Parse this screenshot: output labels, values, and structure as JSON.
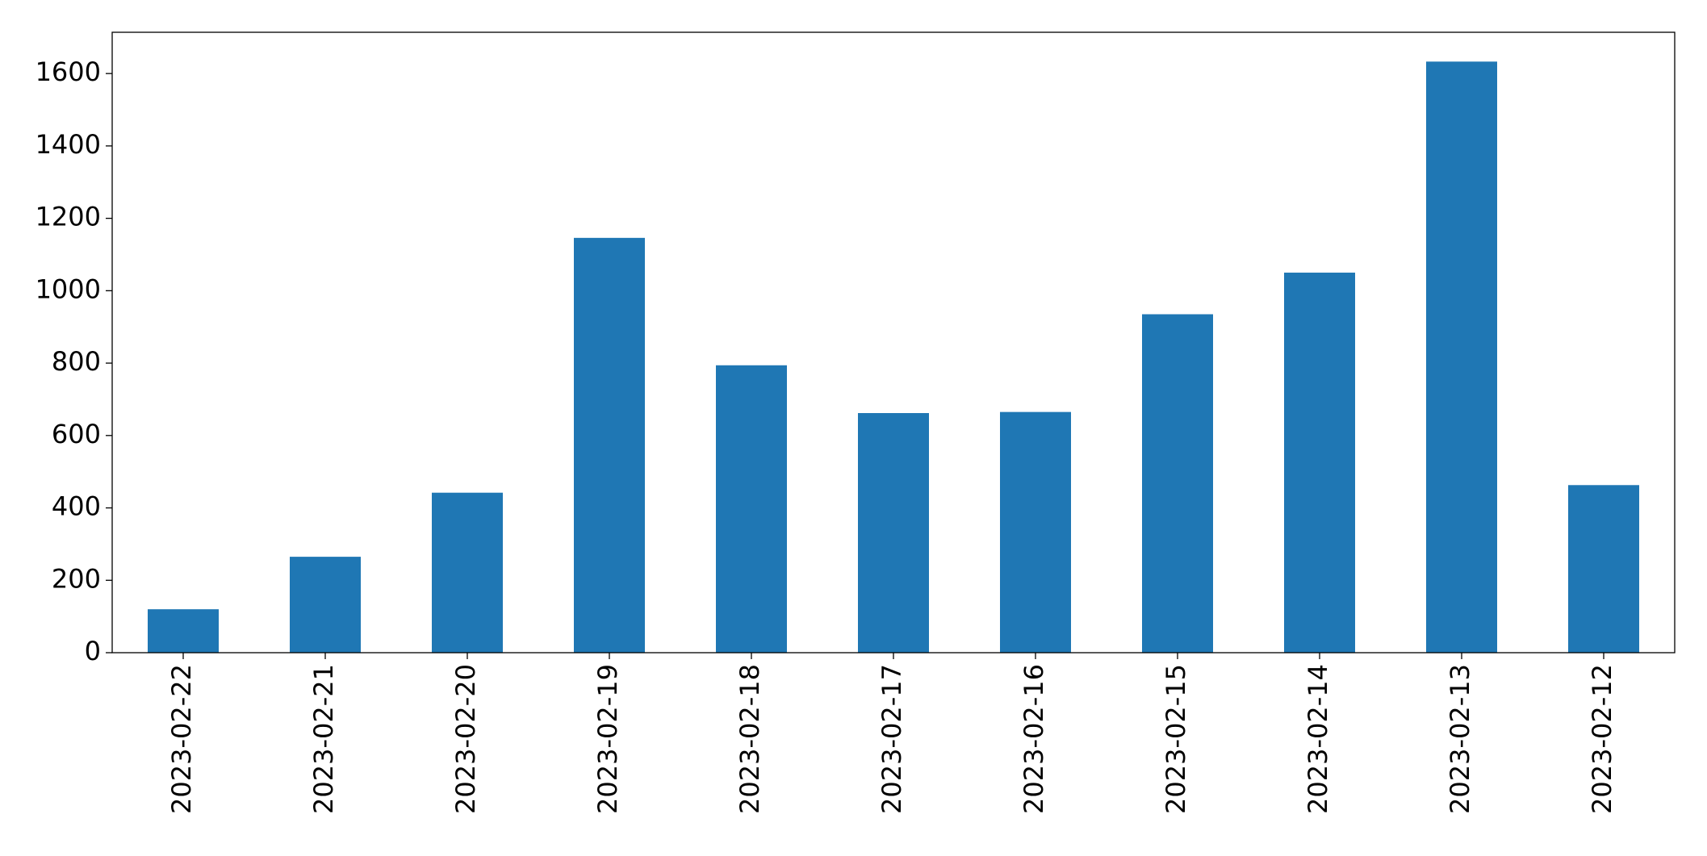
{
  "chart_data": {
    "type": "bar",
    "categories": [
      "2023-02-22",
      "2023-02-21",
      "2023-02-20",
      "2023-02-19",
      "2023-02-18",
      "2023-02-17",
      "2023-02-16",
      "2023-02-15",
      "2023-02-14",
      "2023-02-13",
      "2023-02-12"
    ],
    "values": [
      120,
      265,
      442,
      1146,
      794,
      662,
      665,
      935,
      1050,
      1633,
      463
    ],
    "color": "#1f77b4",
    "ylim": [
      0,
      1714
    ],
    "yticks": [
      0,
      200,
      400,
      600,
      800,
      1000,
      1200,
      1400,
      1600
    ],
    "grid": false
  }
}
